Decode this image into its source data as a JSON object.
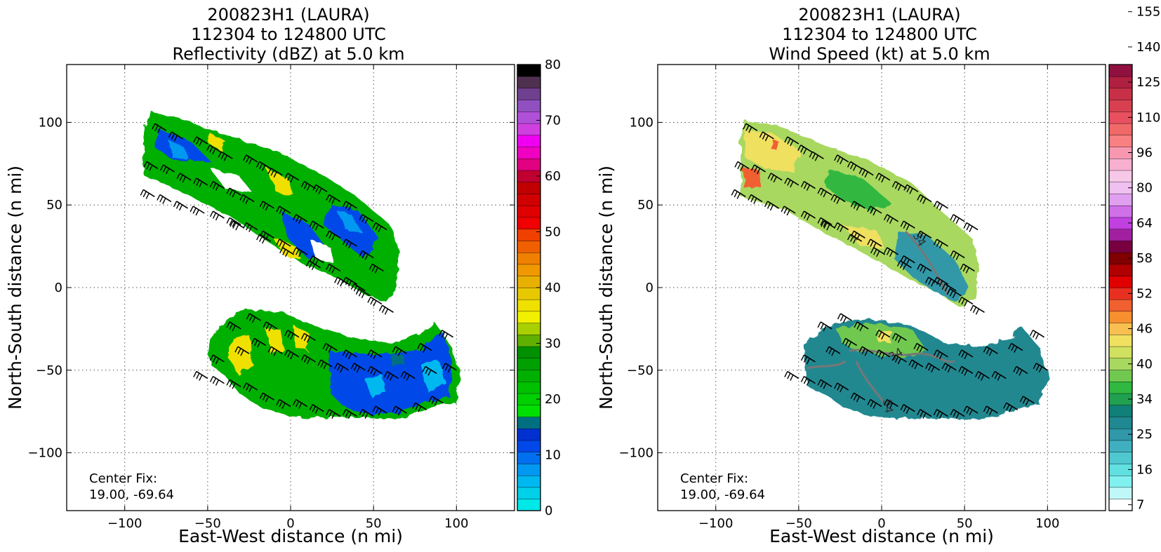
{
  "chart_data": [
    {
      "type": "heatmap",
      "title": [
        "200823H1 (LAURA)",
        "112304 to 124800 UTC",
        "Reflectivity (dBZ) at 5.0 km"
      ],
      "xlabel": "East-West distance (n mi)",
      "ylabel": "North-South distance (n mi)",
      "xlim": [
        -135,
        135
      ],
      "ylim": [
        -135,
        135
      ],
      "xticks": [
        -100,
        -50,
        0,
        50,
        100
      ],
      "xtick_labels": [
        "−100",
        "−50",
        "0",
        "50",
        "100"
      ],
      "yticks": [
        -100,
        -50,
        0,
        50,
        100
      ],
      "ytick_labels": [
        "−100",
        "−50",
        "0",
        "50",
        "100"
      ],
      "grid": true,
      "annotation": [
        "Center Fix:",
        "19.00, -69.64"
      ],
      "colorbar": {
        "range": [
          0,
          80
        ],
        "ticks": [
          0,
          10,
          20,
          30,
          40,
          50,
          60,
          70,
          80
        ],
        "tick_labels": [
          "0",
          "10",
          "20",
          "30",
          "40",
          "50",
          "60",
          "70",
          "80"
        ],
        "colors": [
          "#00e8e8",
          "#00d0e8",
          "#00b8f0",
          "#0098f0",
          "#0070f0",
          "#0048e8",
          "#0030d0",
          "#007080",
          "#00e000",
          "#00d000",
          "#00c000",
          "#00b000",
          "#00a000",
          "#009000",
          "#60b000",
          "#a8d000",
          "#f0f000",
          "#f0e000",
          "#e8c800",
          "#e8b000",
          "#f09800",
          "#f08000",
          "#f06000",
          "#f04000",
          "#f00000",
          "#e00000",
          "#d00000",
          "#c00000",
          "#c00030",
          "#e00080",
          "#f000c0",
          "#f000f0",
          "#d040e0",
          "#b050d8",
          "#9050c0",
          "#704090",
          "#503050",
          "#000000"
        ]
      },
      "barbs": [
        [
          -75,
          95
        ],
        [
          -65,
          90
        ],
        [
          -50,
          87
        ],
        [
          -42,
          82
        ],
        [
          -35,
          78
        ],
        [
          -20,
          76
        ],
        [
          -12,
          72
        ],
        [
          -5,
          68
        ],
        [
          5,
          65
        ],
        [
          15,
          60
        ],
        [
          22,
          58
        ],
        [
          30,
          52
        ],
        [
          40,
          48
        ],
        [
          50,
          40
        ],
        [
          58,
          35
        ],
        [
          -80,
          72
        ],
        [
          -70,
          70
        ],
        [
          -60,
          65
        ],
        [
          -50,
          62
        ],
        [
          -40,
          60
        ],
        [
          -30,
          56
        ],
        [
          -22,
          52
        ],
        [
          -10,
          48
        ],
        [
          0,
          45
        ],
        [
          10,
          40
        ],
        [
          20,
          36
        ],
        [
          30,
          30
        ],
        [
          40,
          25
        ],
        [
          50,
          18
        ],
        [
          56,
          10
        ],
        [
          -82,
          55
        ],
        [
          -72,
          52
        ],
        [
          -62,
          48
        ],
        [
          -52,
          45
        ],
        [
          -40,
          42
        ],
        [
          -30,
          38
        ],
        [
          -20,
          35
        ],
        [
          -10,
          30
        ],
        [
          0,
          25
        ],
        [
          10,
          20
        ],
        [
          20,
          15
        ],
        [
          30,
          10
        ],
        [
          40,
          2
        ],
        [
          48,
          -5
        ],
        [
          55,
          -10
        ],
        [
          62,
          -15
        ],
        [
          -28,
          36
        ],
        [
          -12,
          28
        ],
        [
          2,
          20
        ],
        [
          18,
          12
        ],
        [
          35,
          2
        ],
        [
          45,
          -2
        ],
        [
          -50,
          -55
        ],
        [
          -40,
          -58
        ],
        [
          -30,
          -60
        ],
        [
          -20,
          -62
        ],
        [
          -10,
          -68
        ],
        [
          0,
          -72
        ],
        [
          10,
          -72
        ],
        [
          20,
          -75
        ],
        [
          30,
          -78
        ],
        [
          40,
          -78
        ],
        [
          50,
          -78
        ],
        [
          58,
          -76
        ],
        [
          70,
          -76
        ],
        [
          82,
          -74
        ],
        [
          92,
          -70
        ],
        [
          -40,
          -45
        ],
        [
          -25,
          -40
        ],
        [
          -15,
          -35
        ],
        [
          -5,
          -40
        ],
        [
          5,
          -42
        ],
        [
          15,
          -45
        ],
        [
          25,
          -48
        ],
        [
          35,
          -50
        ],
        [
          45,
          -50
        ],
        [
          55,
          -52
        ],
        [
          65,
          -55
        ],
        [
          75,
          -55
        ],
        [
          88,
          -52
        ],
        [
          100,
          -50
        ],
        [
          -30,
          -25
        ],
        [
          -18,
          -20
        ],
        [
          -8,
          -25
        ],
        [
          5,
          -30
        ],
        [
          15,
          -32
        ],
        [
          28,
          -38
        ],
        [
          40,
          -42
        ],
        [
          55,
          -42
        ],
        [
          70,
          -40
        ],
        [
          85,
          -38
        ],
        [
          98,
          -30
        ]
      ]
    },
    {
      "type": "heatmap",
      "title": [
        "200823H1 (LAURA)",
        "112304 to 124800 UTC",
        "Wind Speed (kt) at 5.0 km"
      ],
      "xlabel": "East-West distance (n mi)",
      "ylabel": "North-South distance (n mi)",
      "xlim": [
        -135,
        135
      ],
      "ylim": [
        -135,
        135
      ],
      "xticks": [
        -100,
        -50,
        0,
        50,
        100
      ],
      "xtick_labels": [
        "−100",
        "−50",
        "0",
        "50",
        "100"
      ],
      "yticks": [
        -100,
        -50,
        0,
        50,
        100
      ],
      "ytick_labels": [
        "−100",
        "−50",
        "0",
        "50",
        "100"
      ],
      "grid": true,
      "annotation": [
        "Center Fix:",
        "19.00, -69.64"
      ],
      "contour_labels": [
        "34",
        "34",
        "34"
      ],
      "colorbar": {
        "tick_labels": [
          "7",
          "16",
          "25",
          "34",
          "40",
          "46",
          "52",
          "58",
          "64",
          "80",
          "96",
          "110",
          "125",
          "140",
          "155"
        ],
        "tick_fracs": [
          0.0167,
          0.1,
          0.1833,
          0.2667,
          0.35,
          0.4333,
          0.5167,
          0.6,
          0.6833,
          0.7667,
          0.85,
          0.9333,
          1.0167,
          1.1,
          1.1833
        ],
        "colors": [
          "#ffffff",
          "#c0f8f8",
          "#80f0f0",
          "#60e0e0",
          "#50c8d0",
          "#40b0c0",
          "#3098a8",
          "#208890",
          "#108078",
          "#20a050",
          "#30b840",
          "#70c850",
          "#a8d860",
          "#d0e060",
          "#f0e060",
          "#f8c050",
          "#f89030",
          "#f06030",
          "#e83020",
          "#e00000",
          "#b00000",
          "#800000",
          "#780040",
          "#a020a0",
          "#c040e0",
          "#d070e8",
          "#e0a0f0",
          "#f0c0f0",
          "#f8c8e8",
          "#f8b0d0",
          "#f898b0",
          "#f88080",
          "#f06868",
          "#e85060",
          "#d84050",
          "#c83048",
          "#b02040",
          "#901040"
        ]
      },
      "barbs": [
        [
          -75,
          95
        ],
        [
          -65,
          90
        ],
        [
          -50,
          87
        ],
        [
          -42,
          82
        ],
        [
          -35,
          78
        ],
        [
          -20,
          76
        ],
        [
          -12,
          72
        ],
        [
          -5,
          68
        ],
        [
          5,
          65
        ],
        [
          15,
          60
        ],
        [
          22,
          58
        ],
        [
          30,
          52
        ],
        [
          40,
          48
        ],
        [
          50,
          40
        ],
        [
          58,
          35
        ],
        [
          -80,
          72
        ],
        [
          -70,
          70
        ],
        [
          -60,
          65
        ],
        [
          -50,
          62
        ],
        [
          -40,
          60
        ],
        [
          -30,
          56
        ],
        [
          -22,
          52
        ],
        [
          -10,
          48
        ],
        [
          0,
          45
        ],
        [
          10,
          40
        ],
        [
          20,
          36
        ],
        [
          30,
          30
        ],
        [
          40,
          25
        ],
        [
          50,
          18
        ],
        [
          56,
          10
        ],
        [
          -82,
          55
        ],
        [
          -72,
          52
        ],
        [
          -62,
          48
        ],
        [
          -52,
          45
        ],
        [
          -40,
          42
        ],
        [
          -30,
          38
        ],
        [
          -20,
          35
        ],
        [
          -10,
          30
        ],
        [
          0,
          25
        ],
        [
          10,
          20
        ],
        [
          20,
          15
        ],
        [
          30,
          10
        ],
        [
          40,
          2
        ],
        [
          48,
          -5
        ],
        [
          55,
          -10
        ],
        [
          62,
          -15
        ],
        [
          -28,
          36
        ],
        [
          -12,
          28
        ],
        [
          2,
          20
        ],
        [
          18,
          12
        ],
        [
          35,
          2
        ],
        [
          45,
          -2
        ],
        [
          -50,
          -55
        ],
        [
          -40,
          -58
        ],
        [
          -30,
          -60
        ],
        [
          -20,
          -62
        ],
        [
          -10,
          -68
        ],
        [
          0,
          -72
        ],
        [
          10,
          -72
        ],
        [
          20,
          -75
        ],
        [
          30,
          -78
        ],
        [
          40,
          -78
        ],
        [
          50,
          -78
        ],
        [
          58,
          -76
        ],
        [
          70,
          -76
        ],
        [
          82,
          -74
        ],
        [
          92,
          -70
        ],
        [
          -40,
          -45
        ],
        [
          -25,
          -40
        ],
        [
          -15,
          -35
        ],
        [
          -5,
          -40
        ],
        [
          5,
          -42
        ],
        [
          15,
          -45
        ],
        [
          25,
          -48
        ],
        [
          35,
          -50
        ],
        [
          45,
          -50
        ],
        [
          55,
          -52
        ],
        [
          65,
          -55
        ],
        [
          75,
          -55
        ],
        [
          88,
          -52
        ],
        [
          100,
          -50
        ],
        [
          -30,
          -25
        ],
        [
          -18,
          -20
        ],
        [
          -8,
          -25
        ],
        [
          5,
          -30
        ],
        [
          15,
          -32
        ],
        [
          28,
          -38
        ],
        [
          40,
          -42
        ],
        [
          55,
          -42
        ],
        [
          70,
          -40
        ],
        [
          85,
          -38
        ],
        [
          98,
          -30
        ]
      ]
    }
  ]
}
